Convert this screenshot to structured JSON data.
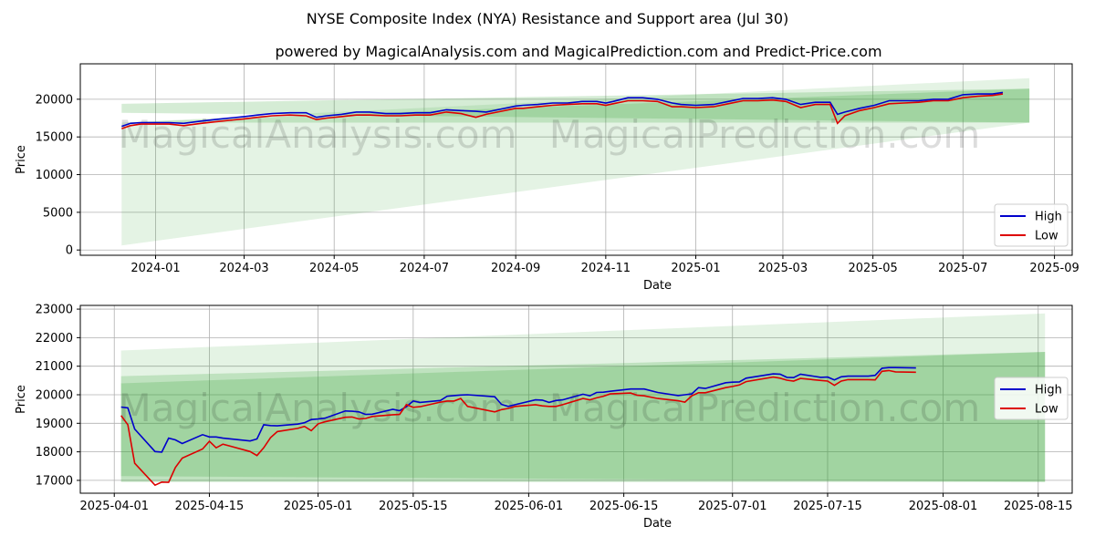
{
  "title": "NYSE Composite Index (NYA) Resistance and Support area (Jul 30)",
  "subtitle": "powered by MagicalAnalysis.com and MagicalPrediction.com and Predict-Price.com",
  "watermarks": [
    "MagicalAnalysis.com",
    "MagicalPrediction.com"
  ],
  "colors": {
    "high": "#0000cc",
    "low": "#dd0000",
    "band": "#2ca02c",
    "grid": "#b0b0b0"
  },
  "chart_data": [
    {
      "type": "line",
      "xlabel": "Date",
      "ylabel": "Price",
      "xlim": [
        "2023-11-11",
        "2025-09-13"
      ],
      "ylim": [
        -700,
        24700
      ],
      "x_ticks": [
        "2024-01-01",
        "2024-03-01",
        "2024-05-01",
        "2024-07-01",
        "2024-09-01",
        "2024-11-01",
        "2025-01-01",
        "2025-03-01",
        "2025-05-01",
        "2025-07-01",
        "2025-09-01"
      ],
      "x_tick_labels": [
        "2024-01",
        "2024-03",
        "2024-05",
        "2024-07",
        "2024-09",
        "2024-11",
        "2025-01",
        "2025-03",
        "2025-05",
        "2025-07",
        "2025-09"
      ],
      "y_ticks": [
        0,
        5000,
        10000,
        15000,
        20000
      ],
      "y_tick_labels": [
        "0",
        "5000",
        "10000",
        "15000",
        "20000"
      ],
      "grid": true,
      "legend": "lower-right",
      "bands": [
        {
          "x": [
            "2023-12-09",
            "2025-08-15"
          ],
          "upper": [
            16900,
            22800
          ],
          "lower": [
            600,
            16900
          ],
          "opacity": 0.13
        },
        {
          "x": [
            "2023-12-09",
            "2025-08-15"
          ],
          "upper": [
            19400,
            21400
          ],
          "lower": [
            18200,
            16900
          ],
          "opacity": 0.2
        },
        {
          "x": [
            "2023-12-09",
            "2025-08-15"
          ],
          "upper": [
            16900,
            21400
          ],
          "lower": [
            16900,
            16900
          ],
          "opacity": 0.2
        }
      ],
      "x": [
        "2023-12-09",
        "2023-12-15",
        "2023-12-22",
        "2024-01-01",
        "2024-01-10",
        "2024-01-20",
        "2024-02-01",
        "2024-02-10",
        "2024-02-20",
        "2024-03-01",
        "2024-03-10",
        "2024-03-20",
        "2024-04-01",
        "2024-04-12",
        "2024-04-19",
        "2024-04-26",
        "2024-05-06",
        "2024-05-16",
        "2024-05-25",
        "2024-06-05",
        "2024-06-15",
        "2024-06-25",
        "2024-07-05",
        "2024-07-16",
        "2024-07-26",
        "2024-08-05",
        "2024-08-12",
        "2024-08-22",
        "2024-09-01",
        "2024-09-06",
        "2024-09-16",
        "2024-09-26",
        "2024-10-06",
        "2024-10-16",
        "2024-10-26",
        "2024-11-01",
        "2024-11-06",
        "2024-11-16",
        "2024-11-26",
        "2024-12-06",
        "2024-12-16",
        "2024-12-22",
        "2025-01-01",
        "2025-01-13",
        "2025-01-23",
        "2025-02-02",
        "2025-02-12",
        "2025-02-22",
        "2025-03-03",
        "2025-03-13",
        "2025-03-23",
        "2025-04-02",
        "2025-04-07",
        "2025-04-12",
        "2025-04-22",
        "2025-05-02",
        "2025-05-12",
        "2025-05-22",
        "2025-06-01",
        "2025-06-11",
        "2025-06-21",
        "2025-07-01",
        "2025-07-11",
        "2025-07-21",
        "2025-07-28"
      ],
      "series": [
        {
          "name": "High",
          "values": [
            16400,
            16800,
            16900,
            16900,
            16900,
            16800,
            17100,
            17300,
            17500,
            17700,
            17900,
            18100,
            18200,
            18200,
            17600,
            17800,
            18000,
            18300,
            18300,
            18100,
            18100,
            18200,
            18200,
            18600,
            18500,
            18400,
            18300,
            18700,
            19100,
            19200,
            19300,
            19500,
            19500,
            19700,
            19700,
            19500,
            19700,
            20200,
            20200,
            20000,
            19500,
            19300,
            19200,
            19300,
            19700,
            20100,
            20100,
            20200,
            20000,
            19300,
            19600,
            19600,
            18000,
            18300,
            18800,
            19200,
            19800,
            19800,
            19800,
            20000,
            20000,
            20600,
            20700,
            20700,
            20900
          ]
        },
        {
          "name": "Low",
          "values": [
            16100,
            16500,
            16700,
            16700,
            16700,
            16500,
            16800,
            17000,
            17200,
            17400,
            17600,
            17800,
            17900,
            17800,
            17300,
            17500,
            17700,
            17900,
            17900,
            17800,
            17800,
            17900,
            17900,
            18300,
            18100,
            17600,
            18000,
            18400,
            18800,
            18800,
            19000,
            19200,
            19300,
            19400,
            19400,
            19200,
            19400,
            19800,
            19800,
            19700,
            19000,
            19000,
            18900,
            19000,
            19400,
            19800,
            19800,
            19900,
            19700,
            18900,
            19300,
            19300,
            16800,
            17800,
            18500,
            18900,
            19400,
            19500,
            19600,
            19800,
            19800,
            20200,
            20400,
            20500,
            20700
          ]
        }
      ]
    },
    {
      "type": "line",
      "xlabel": "Date",
      "ylabel": "Price",
      "xlim": [
        "2025-03-27",
        "2025-08-20"
      ],
      "ylim": [
        16550,
        23130
      ],
      "x_ticks": [
        "2025-04-01",
        "2025-04-15",
        "2025-05-01",
        "2025-05-15",
        "2025-06-01",
        "2025-06-15",
        "2025-07-01",
        "2025-07-15",
        "2025-08-01",
        "2025-08-15"
      ],
      "x_tick_labels": [
        "2025-04-01",
        "2025-04-15",
        "2025-05-01",
        "2025-05-15",
        "2025-06-01",
        "2025-06-15",
        "2025-07-01",
        "2025-07-15",
        "2025-08-01",
        "2025-08-15"
      ],
      "y_ticks": [
        17000,
        18000,
        19000,
        20000,
        21000,
        22000,
        23000
      ],
      "y_tick_labels": [
        "17000",
        "18000",
        "19000",
        "20000",
        "21000",
        "22000",
        "23000"
      ],
      "grid": true,
      "legend": "center-right",
      "bands": [
        {
          "x": [
            "2025-04-02",
            "2025-08-16"
          ],
          "upper": [
            21550,
            22850
          ],
          "lower": [
            16950,
            16950
          ],
          "opacity": 0.13
        },
        {
          "x": [
            "2025-04-02",
            "2025-08-16"
          ],
          "upper": [
            20650,
            21500
          ],
          "lower": [
            17150,
            16950
          ],
          "opacity": 0.2
        },
        {
          "x": [
            "2025-04-02",
            "2025-08-16"
          ],
          "upper": [
            20400,
            21500
          ],
          "lower": [
            16950,
            16950
          ],
          "opacity": 0.2
        }
      ],
      "x": [
        "2025-04-02",
        "2025-04-03",
        "2025-04-04",
        "2025-04-07",
        "2025-04-08",
        "2025-04-09",
        "2025-04-10",
        "2025-04-11",
        "2025-04-14",
        "2025-04-15",
        "2025-04-16",
        "2025-04-17",
        "2025-04-21",
        "2025-04-22",
        "2025-04-23",
        "2025-04-24",
        "2025-04-25",
        "2025-04-28",
        "2025-04-29",
        "2025-04-30",
        "2025-05-01",
        "2025-05-02",
        "2025-05-05",
        "2025-05-06",
        "2025-05-07",
        "2025-05-08",
        "2025-05-09",
        "2025-05-12",
        "2025-05-13",
        "2025-05-14",
        "2025-05-15",
        "2025-05-16",
        "2025-05-19",
        "2025-05-20",
        "2025-05-21",
        "2025-05-22",
        "2025-05-23",
        "2025-05-27",
        "2025-05-28",
        "2025-05-29",
        "2025-05-30",
        "2025-06-02",
        "2025-06-03",
        "2025-06-04",
        "2025-06-05",
        "2025-06-06",
        "2025-06-09",
        "2025-06-10",
        "2025-06-11",
        "2025-06-12",
        "2025-06-13",
        "2025-06-16",
        "2025-06-17",
        "2025-06-18",
        "2025-06-20",
        "2025-06-23",
        "2025-06-24",
        "2025-06-25",
        "2025-06-26",
        "2025-06-27",
        "2025-06-30",
        "2025-07-01",
        "2025-07-02",
        "2025-07-03",
        "2025-07-07",
        "2025-07-08",
        "2025-07-09",
        "2025-07-10",
        "2025-07-11",
        "2025-07-14",
        "2025-07-15",
        "2025-07-16",
        "2025-07-17",
        "2025-07-18",
        "2025-07-21",
        "2025-07-22",
        "2025-07-23",
        "2025-07-24",
        "2025-07-25",
        "2025-07-28"
      ],
      "series": [
        {
          "name": "High",
          "values": [
            19570,
            19540,
            18800,
            18010,
            17990,
            18480,
            18420,
            18290,
            18600,
            18520,
            18520,
            18480,
            18380,
            18450,
            18950,
            18920,
            18910,
            18970,
            19020,
            19130,
            19150,
            19180,
            19430,
            19420,
            19400,
            19310,
            19320,
            19490,
            19440,
            19580,
            19780,
            19730,
            19800,
            19950,
            19970,
            19990,
            20000,
            19930,
            19660,
            19590,
            19650,
            19820,
            19810,
            19730,
            19800,
            19820,
            20020,
            19960,
            20080,
            20090,
            20120,
            20200,
            20200,
            20200,
            20080,
            19970,
            20000,
            20030,
            20250,
            20220,
            20420,
            20440,
            20450,
            20580,
            20730,
            20720,
            20610,
            20600,
            20720,
            20610,
            20620,
            20520,
            20630,
            20650,
            20650,
            20680,
            20930,
            20950,
            20950,
            20940
          ]
        },
        {
          "name": "Low",
          "values": [
            19270,
            18950,
            17600,
            16830,
            16940,
            16930,
            17450,
            17780,
            18100,
            18370,
            18140,
            18270,
            18010,
            17870,
            18140,
            18500,
            18710,
            18820,
            18890,
            18740,
            18980,
            19050,
            19210,
            19220,
            19150,
            19170,
            19240,
            19300,
            19310,
            19650,
            19560,
            19580,
            19740,
            19780,
            19780,
            19870,
            19590,
            19400,
            19480,
            19520,
            19590,
            19650,
            19610,
            19590,
            19590,
            19650,
            19870,
            19820,
            19890,
            19950,
            20030,
            20060,
            19980,
            19960,
            19870,
            19790,
            19740,
            19960,
            20070,
            20070,
            20250,
            20290,
            20340,
            20460,
            20620,
            20580,
            20510,
            20480,
            20570,
            20500,
            20480,
            20330,
            20480,
            20530,
            20530,
            20520,
            20820,
            20850,
            20800,
            20790
          ]
        }
      ]
    }
  ]
}
